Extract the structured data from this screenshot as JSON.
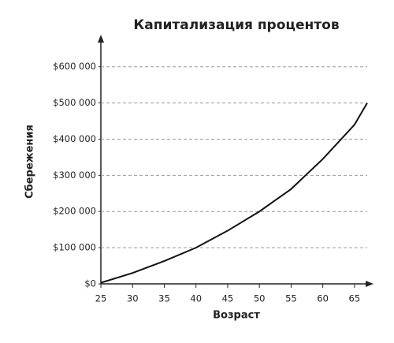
{
  "chart_data": {
    "type": "line",
    "title": "Капитализация процентов",
    "x_label": "Возраст",
    "y_label": "Сбережения",
    "series": [
      {
        "color": "#111111",
        "x": [
          25,
          30,
          35,
          40,
          45,
          50,
          55,
          60,
          65,
          67
        ],
        "values": [
          3000,
          30000,
          63000,
          100000,
          147000,
          200000,
          262000,
          345000,
          440000,
          500000
        ]
      }
    ],
    "xlim": [
      25,
      68
    ],
    "xticks": [
      25,
      30,
      35,
      40,
      45,
      50,
      55,
      60,
      65
    ],
    "ylim": [
      0,
      680000
    ],
    "yticks": [
      {
        "value": 0,
        "label": "$0"
      },
      {
        "value": 100000,
        "label": "$100 000"
      },
      {
        "value": 200000,
        "label": "$200 000"
      },
      {
        "value": 300000,
        "label": "$300 000"
      },
      {
        "value": 400000,
        "label": "$400 000"
      },
      {
        "value": 500000,
        "label": "$500 000"
      },
      {
        "value": 600000,
        "label": "$600 000"
      }
    ],
    "grid": true
  }
}
